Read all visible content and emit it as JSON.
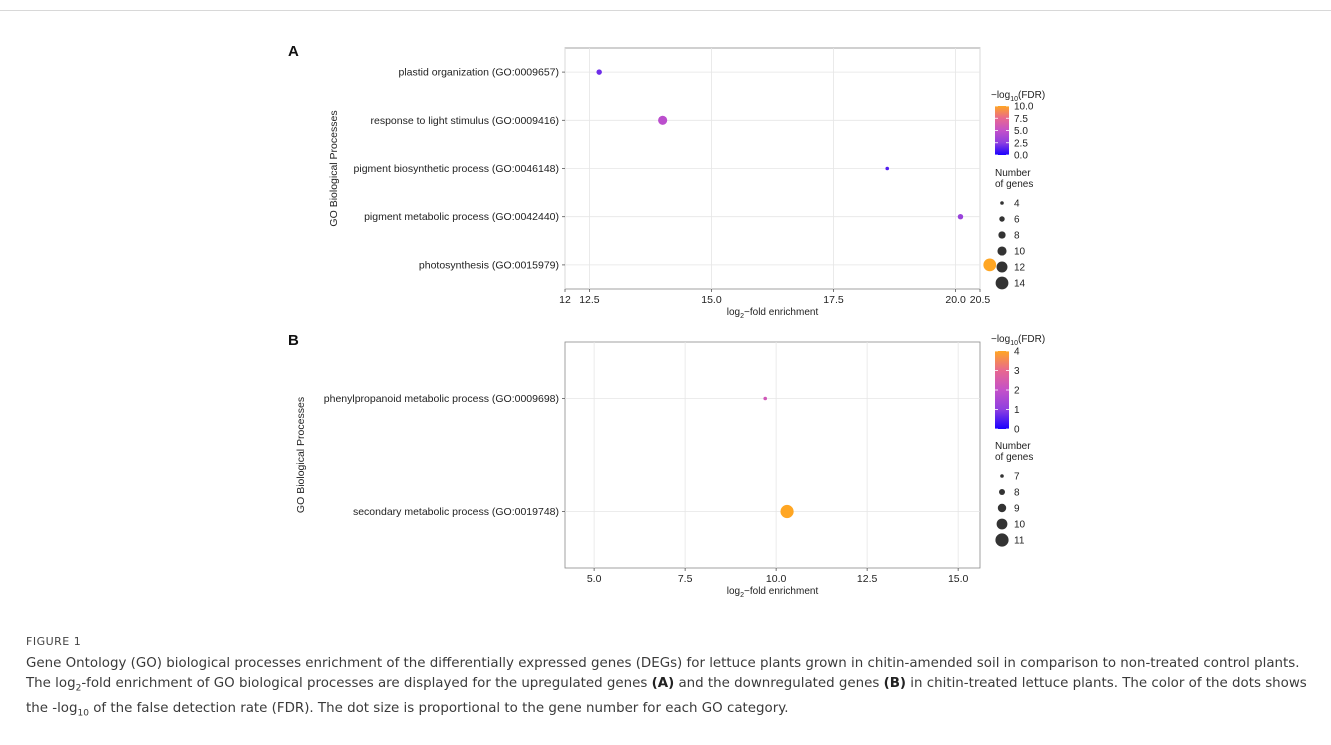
{
  "figure": {
    "label": "FIGURE 1",
    "caption_parts": {
      "p1": "Gene Ontology (GO) biological processes enrichment of the differentially expressed genes (DEGs) for lettuce plants grown in chitin-amended soil in comparison to non-treated control plants. The log",
      "p1_sub": "2",
      "p2": "-fold enrichment of GO biological processes are displayed for the upregulated genes ",
      "ref_a": "(A)",
      "p3": " and the downregulated genes ",
      "ref_b": "(B)",
      "p4": " in chitin-treated lettuce plants. The color of the dots shows the -log",
      "p4_sub": "10",
      "p5": " of the false detection rate (FDR). The dot size is proportional to the gene number for each GO category."
    }
  },
  "chart_data": [
    {
      "type": "scatter",
      "panel_label": "A",
      "xlabel_prefix": "log",
      "xlabel_sub": "2",
      "xlabel_suffix": "−fold enrichment",
      "ylabel": "GO Biological Processes",
      "xlim": [
        12,
        20.5
      ],
      "xticks": [
        12,
        12.5,
        15.0,
        17.5,
        20.0,
        20.5
      ],
      "xtick_labels": [
        "12",
        "12.5",
        "15.0",
        "17.5",
        "20.0",
        "20.5"
      ],
      "categories": [
        "plastid organization (GO:0009657)",
        "response to light stimulus (GO:0009416)",
        "pigment biosynthetic process (GO:0046148)",
        "pigment metabolic process (GO:0042440)",
        "photosynthesis (GO:0015979)"
      ],
      "points": [
        {
          "category": "plastid organization (GO:0009657)",
          "x": 12.7,
          "fdr": 1.8,
          "genes": 6
        },
        {
          "category": "response to light stimulus (GO:0009416)",
          "x": 14.0,
          "fdr": 4.6,
          "genes": 10
        },
        {
          "category": "pigment biosynthetic process (GO:0046148)",
          "x": 18.6,
          "fdr": 1.2,
          "genes": 4
        },
        {
          "category": "pigment metabolic process (GO:0042440)",
          "x": 20.1,
          "fdr": 3.0,
          "genes": 6
        },
        {
          "category": "photosynthesis (GO:0015979)",
          "x": 20.7,
          "fdr": 10.0,
          "genes": 14
        }
      ],
      "color_legend": {
        "title_prefix": "−log",
        "title_sub": "10",
        "title_suffix": "(FDR)",
        "min": 0,
        "max": 10,
        "ticks": [
          0,
          2.5,
          5,
          7.5,
          10
        ],
        "tick_labels": [
          "0.0",
          "2.5",
          "5.0",
          "7.5",
          "10.0"
        ],
        "colors": [
          "#1a00ff",
          "#8e3fe0",
          "#c451c9",
          "#e8688f",
          "#ffa623"
        ]
      },
      "size_legend": {
        "title_line1": "Number",
        "title_line2": "of genes",
        "values": [
          4,
          6,
          8,
          10,
          12,
          14
        ],
        "labels": [
          "4",
          "6",
          "8",
          "10",
          "12",
          "14"
        ]
      }
    },
    {
      "type": "scatter",
      "panel_label": "B",
      "xlabel_prefix": "log",
      "xlabel_sub": "2",
      "xlabel_suffix": "−fold enrichment",
      "ylabel": "GO Biological Processes",
      "xlim": [
        4.2,
        15.6
      ],
      "xticks": [
        5,
        7.5,
        10,
        12.5,
        15
      ],
      "xtick_labels": [
        "5.0",
        "7.5",
        "10.0",
        "12.5",
        "15.0"
      ],
      "categories": [
        "phenylpropanoid metabolic process (GO:0009698)",
        "secondary metabolic process (GO:0019748)"
      ],
      "points": [
        {
          "category": "phenylpropanoid metabolic process (GO:0009698)",
          "x": 9.7,
          "fdr": 2.3,
          "genes": 7
        },
        {
          "category": "secondary metabolic process (GO:0019748)",
          "x": 10.3,
          "fdr": 4.0,
          "genes": 11
        }
      ],
      "color_legend": {
        "title_prefix": "−log",
        "title_sub": "10",
        "title_suffix": "(FDR)",
        "min": 0,
        "max": 4,
        "ticks": [
          0,
          1,
          2,
          3,
          4
        ],
        "tick_labels": [
          "0",
          "1",
          "2",
          "3",
          "4"
        ],
        "colors": [
          "#1a00ff",
          "#8e3fe0",
          "#c451c9",
          "#e8688f",
          "#ffa623"
        ]
      },
      "size_legend": {
        "title_line1": "Number",
        "title_line2": "of genes",
        "values": [
          7,
          8,
          9,
          10,
          11
        ],
        "labels": [
          "7",
          "8",
          "9",
          "10",
          "11"
        ]
      }
    }
  ]
}
